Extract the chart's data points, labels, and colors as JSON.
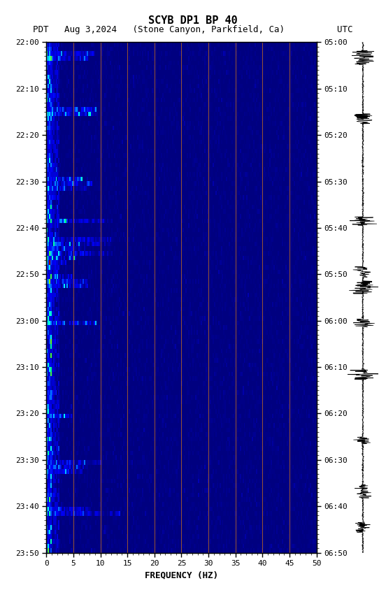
{
  "title_line1": "SCYB DP1 BP 40",
  "title_line2": "PDT   Aug 3,2024   (Stone Canyon, Parkfield, Ca)          UTC",
  "xlabel": "FREQUENCY (HZ)",
  "freq_min": 0,
  "freq_max": 50,
  "time_start_pdt": "22:00",
  "time_end_pdt": "23:50",
  "time_start_utc": "05:00",
  "time_end_utc": "06:50",
  "ytick_labels_left": [
    "22:00",
    "22:10",
    "22:20",
    "22:30",
    "22:40",
    "22:50",
    "23:00",
    "23:10",
    "23:20",
    "23:30",
    "23:40",
    "23:50"
  ],
  "ytick_labels_right": [
    "05:00",
    "05:10",
    "05:20",
    "05:30",
    "05:40",
    "05:50",
    "06:00",
    "06:10",
    "06:20",
    "06:30",
    "06:40",
    "06:50"
  ],
  "xtick_labels": [
    "0",
    "5",
    "10",
    "15",
    "20",
    "25",
    "30",
    "35",
    "40",
    "45",
    "50"
  ],
  "freq_gridlines": [
    5,
    10,
    15,
    20,
    25,
    30,
    35,
    40,
    45
  ],
  "background_color": "#ffffff",
  "spectrogram_bg": "#00008B",
  "colormap": [
    "#00008B",
    "#0000FF",
    "#0040FF",
    "#00BFFF",
    "#00FFFF",
    "#00FF80",
    "#80FF00",
    "#FFFF00",
    "#FF8000",
    "#FF0000",
    "#8B0000"
  ],
  "waveform_color": "#000000"
}
